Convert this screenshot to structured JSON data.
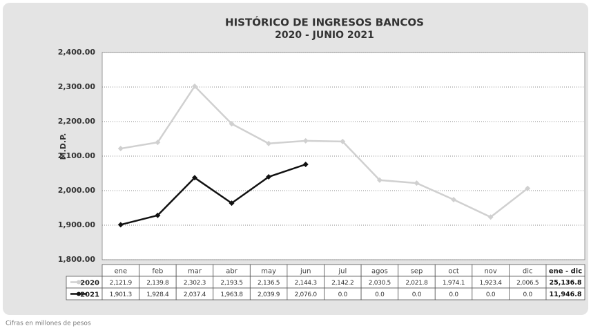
{
  "chart_data": {
    "type": "line",
    "title": "HISTÓRICO DE INGRESOS BANCOS",
    "subtitle": "2020 - JUNIO 2021",
    "y_label": "M.D.P.",
    "categories": [
      "ene",
      "feb",
      "mar",
      "abr",
      "may",
      "jun",
      "jul",
      "agos",
      "sep",
      "oct",
      "nov",
      "dic"
    ],
    "series": [
      {
        "name": "2020",
        "color": "#d0d0d0",
        "values": [
          2121.9,
          2139.8,
          2302.3,
          2193.5,
          2136.5,
          2144.3,
          2142.2,
          2030.5,
          2021.8,
          1974.1,
          1923.4,
          2006.5
        ]
      },
      {
        "name": "2021",
        "color": "#111111",
        "values": [
          1901.3,
          1928.4,
          2037.4,
          1963.8,
          2039.9,
          2076.0,
          null,
          null,
          null,
          null,
          null,
          null
        ]
      }
    ],
    "ylim": [
      1800,
      2400
    ],
    "yticks": [
      {
        "value": 1800,
        "label": "1,800.00"
      },
      {
        "value": 1900,
        "label": "1,900.00"
      },
      {
        "value": 2000,
        "label": "2,000.00"
      },
      {
        "value": 2100,
        "label": "2,100.00"
      },
      {
        "value": 2200,
        "label": "2,200.00"
      },
      {
        "value": 2300,
        "label": "2,300.00"
      },
      {
        "value": 2400,
        "label": "2,400.00"
      }
    ],
    "grid": true,
    "table": {
      "total_header": "ene - dic",
      "rows": [
        {
          "cells": [
            "2,121.9",
            "2,139.8",
            "2,302.3",
            "2,193.5",
            "2,136.5",
            "2,144.3",
            "2,142.2",
            "2,030.5",
            "2,021.8",
            "1,974.1",
            "1,923.4",
            "2,006.5"
          ],
          "total": "25,136.8"
        },
        {
          "cells": [
            "1,901.3",
            "1,928.4",
            "2,037.4",
            "1,963.8",
            "2,039.9",
            "2,076.0",
            "0.0",
            "0.0",
            "0.0",
            "0.0",
            "0.0",
            "0.0"
          ],
          "total": "11,946.8"
        }
      ]
    },
    "note": "Cifras en millones de pesos"
  }
}
